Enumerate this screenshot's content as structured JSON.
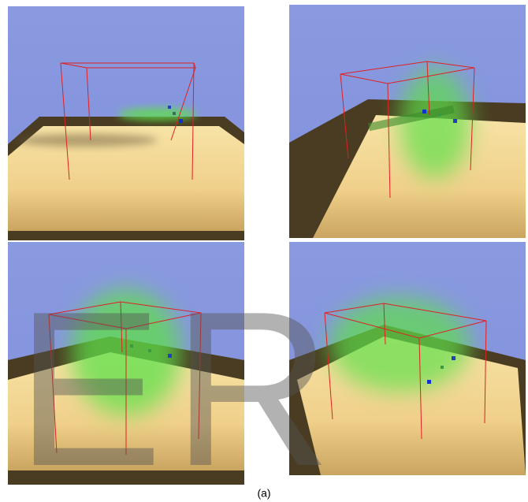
{
  "figure": {
    "caption": "(a)",
    "watermark": "ER"
  }
}
